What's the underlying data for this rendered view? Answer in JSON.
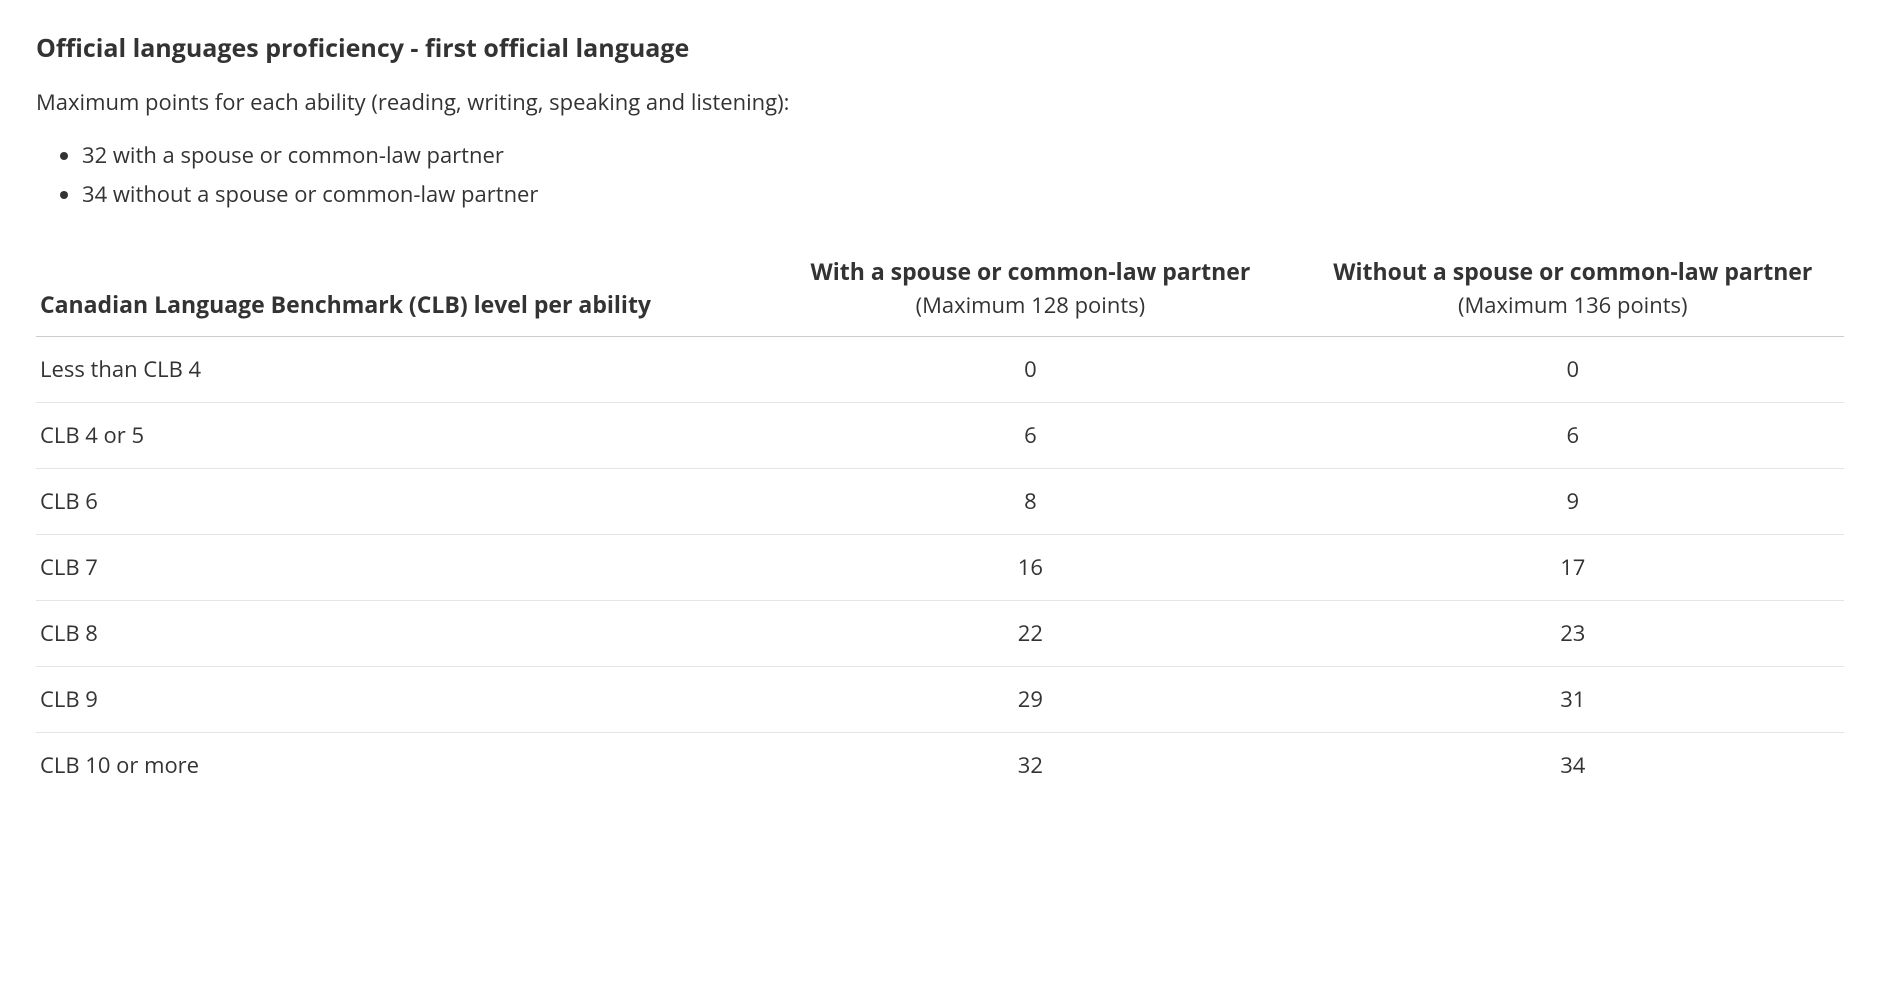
{
  "heading": "Official languages proficiency - first official language",
  "description": "Maximum points for each ability (reading, writing, speaking and listening):",
  "bullets": [
    "32 with a spouse or common-law partner",
    "34 without a spouse or common-law partner"
  ],
  "table": {
    "columns": [
      {
        "title": "Canadian Language Benchmark (CLB) level per ability",
        "subtitle": ""
      },
      {
        "title": "With a spouse or common-law partner",
        "subtitle": "(Maximum 128 points)"
      },
      {
        "title": "Without a spouse or common-law partner",
        "subtitle": "(Maximum 136 points)"
      }
    ],
    "rows": [
      [
        "Less than CLB 4",
        "0",
        "0"
      ],
      [
        "CLB 4 or 5",
        "6",
        "6"
      ],
      [
        "CLB 6",
        "8",
        "9"
      ],
      [
        "CLB 7",
        "16",
        "17"
      ],
      [
        "CLB 8",
        "22",
        "23"
      ],
      [
        "CLB 9",
        "29",
        "31"
      ],
      [
        "CLB 10 or more",
        "32",
        "34"
      ]
    ],
    "header_border_color": "#cccccc",
    "row_border_color": "#e5e5e5",
    "text_color": "#333333",
    "background_color": "#ffffff"
  }
}
